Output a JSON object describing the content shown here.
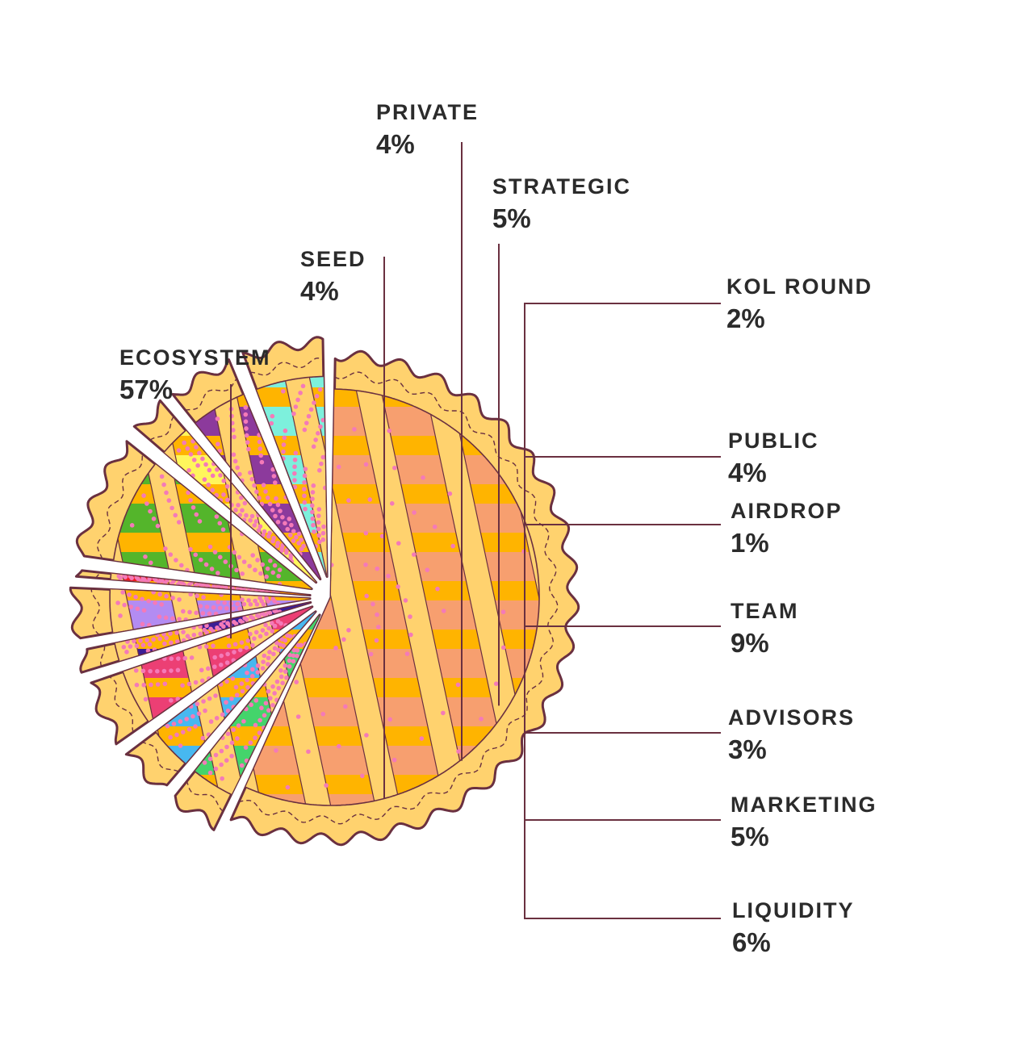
{
  "chart_data": {
    "type": "pie",
    "style": "exploded pie drawn as lattice pie slices",
    "slices": [
      {
        "label": "ECOSYSTEM",
        "value": 57,
        "display": "57%",
        "color": "#F79F6F"
      },
      {
        "label": "SEED",
        "value": 4,
        "display": "4%",
        "color": "#44D46B"
      },
      {
        "label": "PRIVATE",
        "value": 4,
        "display": "4%",
        "color": "#47B8F0"
      },
      {
        "label": "STRATEGIC",
        "value": 5,
        "display": "5%",
        "color": "#EC3F74"
      },
      {
        "label": "KOL ROUND",
        "value": 2,
        "display": "2%",
        "color": "#3C1E95"
      },
      {
        "label": "PUBLIC",
        "value": 4,
        "display": "4%",
        "color": "#B38CF2"
      },
      {
        "label": "AIRDROP",
        "value": 1,
        "display": "1%",
        "color": "#EE1C24"
      },
      {
        "label": "TEAM",
        "value": 9,
        "display": "9%",
        "color": "#54B52B"
      },
      {
        "label": "ADVISORS",
        "value": 3,
        "display": "3%",
        "color": "#FFF65C"
      },
      {
        "label": "MARKETING",
        "value": 5,
        "display": "5%",
        "color": "#8C3A9C"
      },
      {
        "label": "LIQUIDITY",
        "value": 6,
        "display": "6%",
        "color": "#7DF0DC"
      }
    ]
  },
  "theme": {
    "crust": "#FFD26E",
    "lattice": "#FFB400",
    "outline": "#6A3040",
    "dots": "#F47AB8",
    "text": "#2B2B2B"
  }
}
